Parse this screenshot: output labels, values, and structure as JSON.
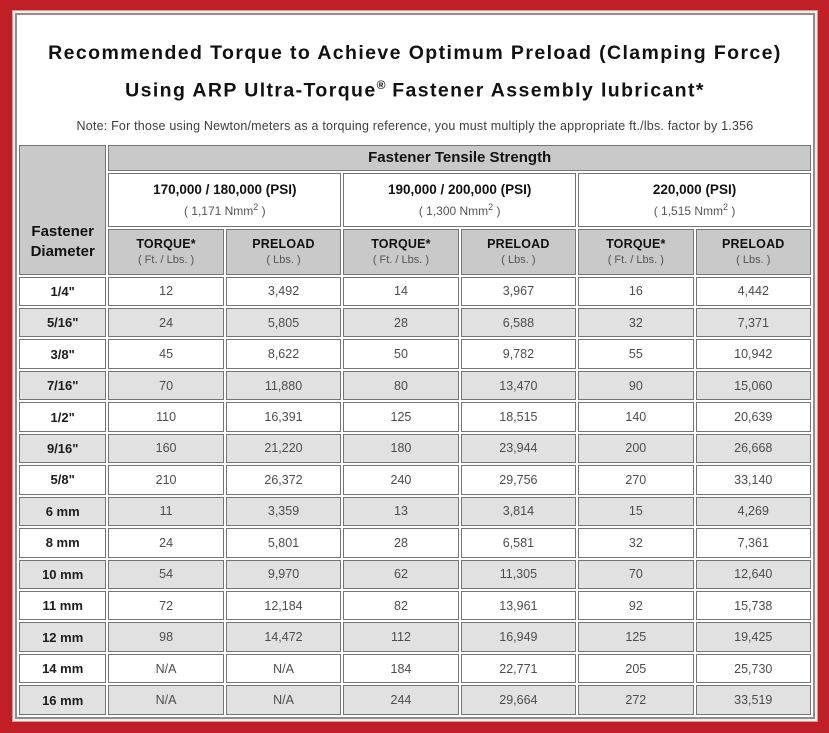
{
  "title": {
    "line1": "Recommended Torque to Achieve Optimum Preload (Clamping Force)",
    "line2_prefix": "Using ARP Ultra-Torque",
    "line2_sup": "®",
    "line2_suffix": " Fastener Assembly lubricant*",
    "note": "Note: For those using Newton/meters as a torquing reference, you must multiply the appropriate ft./lbs. factor by 1.356"
  },
  "table": {
    "tensile_strength_header": "Fastener Tensile Strength",
    "diameter_header_line1": "Fastener",
    "diameter_header_line2": "Diameter",
    "strength_groups": [
      {
        "psi": "170,000 / 180,000 (PSI)",
        "nmm_prefix": "( 1,171 Nmm",
        "nmm_sup": "2",
        "nmm_suffix": " )"
      },
      {
        "psi": "190,000 / 200,000 (PSI)",
        "nmm_prefix": "( 1,300 Nmm",
        "nmm_sup": "2",
        "nmm_suffix": " )"
      },
      {
        "psi": "220,000 (PSI)",
        "nmm_prefix": "( 1,515 Nmm",
        "nmm_sup": "2",
        "nmm_suffix": " )"
      }
    ],
    "column_headers": {
      "torque_label": "TORQUE*",
      "torque_sub": "( Ft. / Lbs. )",
      "preload_label": "PRELOAD",
      "preload_sub": "( Lbs. )"
    },
    "rows": [
      {
        "diameter": "1/4\"",
        "values": [
          "12",
          "3,492",
          "14",
          "3,967",
          "16",
          "4,442"
        ]
      },
      {
        "diameter": "5/16\"",
        "values": [
          "24",
          "5,805",
          "28",
          "6,588",
          "32",
          "7,371"
        ]
      },
      {
        "diameter": "3/8\"",
        "values": [
          "45",
          "8,622",
          "50",
          "9,782",
          "55",
          "10,942"
        ]
      },
      {
        "diameter": "7/16\"",
        "values": [
          "70",
          "11,880",
          "80",
          "13,470",
          "90",
          "15,060"
        ]
      },
      {
        "diameter": "1/2\"",
        "values": [
          "110",
          "16,391",
          "125",
          "18,515",
          "140",
          "20,639"
        ]
      },
      {
        "diameter": "9/16\"",
        "values": [
          "160",
          "21,220",
          "180",
          "23,944",
          "200",
          "26,668"
        ]
      },
      {
        "diameter": "5/8\"",
        "values": [
          "210",
          "26,372",
          "240",
          "29,756",
          "270",
          "33,140"
        ]
      },
      {
        "diameter": "6 mm",
        "values": [
          "11",
          "3,359",
          "13",
          "3,814",
          "15",
          "4,269"
        ]
      },
      {
        "diameter": "8 mm",
        "values": [
          "24",
          "5,801",
          "28",
          "6,581",
          "32",
          "7,361"
        ]
      },
      {
        "diameter": "10 mm",
        "values": [
          "54",
          "9,970",
          "62",
          "11,305",
          "70",
          "12,640"
        ]
      },
      {
        "diameter": "11 mm",
        "values": [
          "72",
          "12,184",
          "82",
          "13,961",
          "92",
          "15,738"
        ]
      },
      {
        "diameter": "12 mm",
        "values": [
          "98",
          "14,472",
          "112",
          "16,949",
          "125",
          "19,425"
        ]
      },
      {
        "diameter": "14 mm",
        "values": [
          "N/A",
          "N/A",
          "184",
          "22,771",
          "205",
          "25,730"
        ]
      },
      {
        "diameter": "16 mm",
        "values": [
          "N/A",
          "N/A",
          "244",
          "29,664",
          "272",
          "33,519"
        ]
      }
    ]
  },
  "colors": {
    "frame_red": "#c01f26",
    "header_gray": "#c9c9c9",
    "row_alt_gray": "#e1e1e1",
    "cell_border": "#757575",
    "data_text": "#4d4d4d"
  }
}
